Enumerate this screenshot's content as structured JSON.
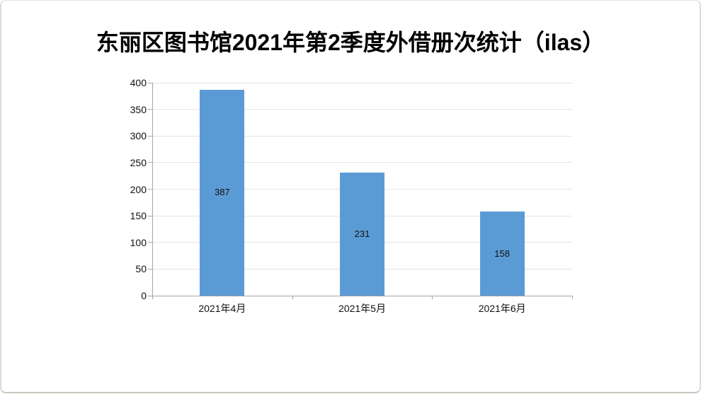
{
  "page": {
    "background": "#ffffff",
    "border_color": "#cdd1c4"
  },
  "chart_data": {
    "type": "bar",
    "title": "东丽区图书馆2021年第2季度外借册次统计（ilas）",
    "categories": [
      "2021年4月",
      "2021年5月",
      "2021年6月"
    ],
    "values": [
      387,
      231,
      158
    ],
    "data_labels": [
      "387",
      "231",
      "158"
    ],
    "data_label_position": "center",
    "y_ticks": [
      0,
      50,
      100,
      150,
      200,
      250,
      300,
      350,
      400
    ],
    "ylim": [
      0,
      400
    ],
    "xlabel": "",
    "ylabel": "",
    "grid": true,
    "legend": "none",
    "bar_color": "#5b9bd5",
    "gridline_color": "#e4e4e4",
    "axis_line_color": "#a6a6a6",
    "text_color": "#111111"
  }
}
